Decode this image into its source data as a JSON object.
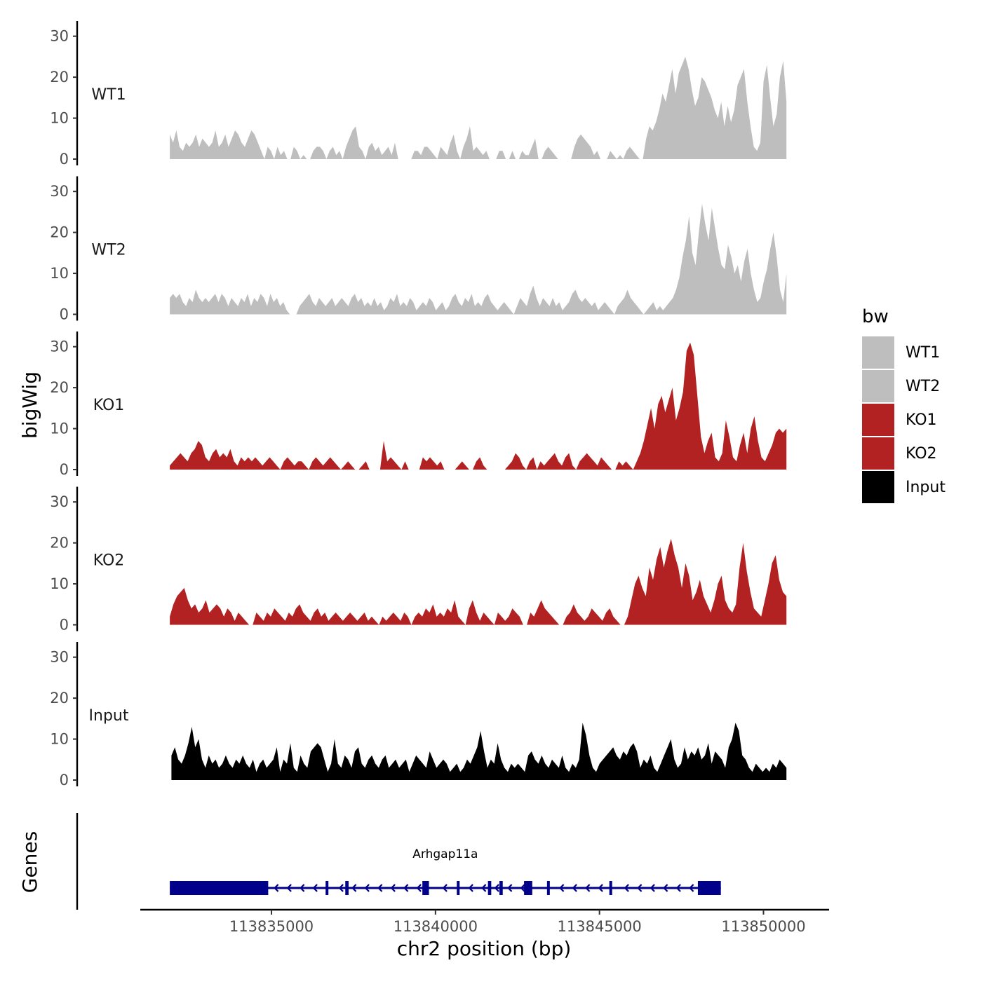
{
  "chart_data": {
    "type": "area",
    "ylabel": "bigWig",
    "xlabel": "chr2 position (bp)",
    "genes_label": "Genes",
    "xlim": [
      113831000,
      113852000
    ],
    "x_ticks": [
      113835000,
      113840000,
      113845000,
      113850000
    ],
    "x_tick_labels": [
      "113835000",
      "113840000",
      "113845000",
      "113850000"
    ],
    "ylim": [
      0,
      32
    ],
    "y_ticks": [
      0,
      10,
      20,
      30
    ],
    "y_tick_labels": [
      "0",
      "10",
      "20",
      "30"
    ],
    "track_range": [
      113831900,
      113850700
    ],
    "legend": {
      "title": "bw",
      "entries": [
        {
          "label": "WT1",
          "color": "#bebebe"
        },
        {
          "label": "WT2",
          "color": "#bebebe"
        },
        {
          "label": "KO1",
          "color": "#b22222"
        },
        {
          "label": "KO2",
          "color": "#b22222"
        },
        {
          "label": "Input",
          "color": "#000000"
        }
      ]
    },
    "series": [
      {
        "name": "WT1",
        "color": "#bebebe",
        "x_start": 113831900,
        "x_end": 113850700,
        "values": [
          6,
          4,
          7,
          3,
          2,
          4,
          3,
          4,
          6,
          3,
          5,
          4,
          3,
          4,
          7,
          3,
          4,
          6,
          3,
          5,
          7,
          6,
          4,
          3,
          5,
          7,
          6,
          4,
          2,
          0,
          3,
          2,
          0,
          3,
          1,
          2,
          0,
          0,
          3,
          2,
          0,
          1,
          0,
          0,
          2,
          3,
          3,
          2,
          0,
          2,
          3,
          1,
          2,
          0,
          3,
          5,
          7,
          8,
          3,
          2,
          0,
          3,
          4,
          2,
          3,
          1,
          2,
          3,
          1,
          4,
          0,
          0,
          0,
          0,
          0,
          2,
          2,
          1,
          3,
          3,
          2,
          1,
          0,
          3,
          2,
          1,
          4,
          6,
          2,
          0,
          3,
          5,
          8,
          2,
          3,
          2,
          1,
          2,
          0,
          0,
          0,
          2,
          2,
          0,
          0,
          2,
          0,
          0,
          2,
          1,
          1,
          3,
          5,
          0,
          0,
          2,
          3,
          2,
          1,
          0,
          0,
          0,
          0,
          0,
          3,
          5,
          6,
          5,
          4,
          3,
          1,
          2,
          0,
          0,
          0,
          2,
          1,
          0,
          1,
          0,
          2,
          3,
          2,
          1,
          0,
          0,
          5,
          8,
          7,
          9,
          12,
          16,
          14,
          18,
          22,
          16,
          21,
          23,
          25,
          22,
          17,
          13,
          15,
          20,
          19,
          17,
          15,
          12,
          10,
          14,
          8,
          13,
          9,
          12,
          18,
          20,
          22,
          14,
          8,
          3,
          2,
          4,
          19,
          23,
          15,
          8,
          11,
          20,
          24,
          14
        ]
      },
      {
        "name": "WT2",
        "color": "#bebebe",
        "x_start": 113831900,
        "x_end": 113850700,
        "values": [
          4,
          5,
          4,
          5,
          3,
          2,
          4,
          3,
          6,
          4,
          3,
          4,
          3,
          4,
          5,
          3,
          5,
          4,
          2,
          4,
          3,
          2,
          4,
          3,
          5,
          2,
          4,
          3,
          5,
          4,
          2,
          5,
          3,
          4,
          2,
          3,
          1,
          0,
          0,
          0,
          2,
          3,
          4,
          5,
          3,
          2,
          4,
          3,
          2,
          3,
          4,
          2,
          3,
          4,
          3,
          2,
          4,
          5,
          3,
          4,
          2,
          3,
          2,
          4,
          2,
          3,
          1,
          2,
          4,
          3,
          5,
          2,
          3,
          2,
          4,
          3,
          1,
          2,
          3,
          2,
          4,
          3,
          1,
          2,
          3,
          1,
          2,
          4,
          5,
          3,
          2,
          4,
          3,
          5,
          2,
          3,
          2,
          4,
          5,
          3,
          2,
          1,
          2,
          3,
          2,
          1,
          0,
          2,
          4,
          3,
          2,
          5,
          7,
          4,
          2,
          4,
          3,
          2,
          4,
          2,
          3,
          1,
          2,
          3,
          5,
          6,
          4,
          3,
          4,
          3,
          2,
          3,
          1,
          2,
          3,
          2,
          1,
          0,
          2,
          3,
          4,
          6,
          4,
          3,
          2,
          1,
          0,
          1,
          2,
          3,
          1,
          2,
          1,
          2,
          3,
          4,
          6,
          9,
          14,
          18,
          24,
          15,
          12,
          20,
          27,
          22,
          18,
          26,
          21,
          16,
          12,
          11,
          17,
          14,
          10,
          12,
          8,
          13,
          16,
          10,
          6,
          3,
          4,
          8,
          11,
          16,
          20,
          14,
          6,
          3,
          10
        ]
      },
      {
        "name": "KO1",
        "color": "#b22222",
        "x_start": 113831900,
        "x_end": 113850700,
        "values": [
          1,
          2,
          3,
          4,
          3,
          2,
          4,
          5,
          7,
          6,
          3,
          2,
          4,
          5,
          3,
          4,
          3,
          5,
          2,
          1,
          3,
          2,
          3,
          2,
          3,
          2,
          1,
          2,
          3,
          2,
          1,
          0,
          2,
          3,
          2,
          1,
          2,
          2,
          1,
          0,
          2,
          3,
          2,
          1,
          2,
          3,
          2,
          1,
          0,
          1,
          2,
          1,
          0,
          0,
          1,
          2,
          0,
          0,
          0,
          0,
          7,
          2,
          3,
          2,
          1,
          0,
          2,
          0,
          0,
          0,
          0,
          3,
          2,
          3,
          2,
          1,
          2,
          0,
          0,
          0,
          0,
          1,
          2,
          1,
          0,
          0,
          2,
          3,
          1,
          0,
          0,
          0,
          0,
          0,
          0,
          1,
          2,
          4,
          3,
          1,
          0,
          2,
          3,
          0,
          2,
          1,
          2,
          3,
          4,
          2,
          1,
          3,
          4,
          1,
          0,
          2,
          3,
          4,
          3,
          2,
          1,
          3,
          2,
          1,
          0,
          0,
          2,
          1,
          2,
          1,
          0,
          2,
          4,
          7,
          11,
          15,
          10,
          16,
          18,
          14,
          17,
          20,
          12,
          15,
          19,
          29,
          31,
          28,
          18,
          8,
          4,
          7,
          9,
          3,
          2,
          4,
          12,
          8,
          3,
          2,
          6,
          9,
          4,
          10,
          13,
          7,
          3,
          2,
          4,
          6,
          9,
          10,
          9,
          10
        ]
      },
      {
        "name": "KO2",
        "color": "#b22222",
        "x_start": 113831900,
        "x_end": 113850700,
        "values": [
          2,
          5,
          7,
          8,
          9,
          6,
          4,
          5,
          3,
          4,
          6,
          3,
          4,
          5,
          4,
          2,
          4,
          3,
          1,
          3,
          2,
          1,
          0,
          0,
          3,
          2,
          1,
          3,
          2,
          4,
          3,
          2,
          1,
          3,
          2,
          4,
          5,
          3,
          2,
          1,
          3,
          4,
          2,
          3,
          1,
          2,
          3,
          2,
          1,
          2,
          3,
          2,
          1,
          2,
          3,
          1,
          2,
          1,
          0,
          2,
          1,
          2,
          3,
          2,
          1,
          3,
          2,
          0,
          2,
          3,
          2,
          4,
          3,
          5,
          2,
          3,
          2,
          4,
          3,
          6,
          2,
          1,
          0,
          4,
          6,
          3,
          1,
          3,
          2,
          1,
          0,
          3,
          2,
          1,
          2,
          4,
          3,
          2,
          0,
          0,
          3,
          2,
          4,
          6,
          4,
          3,
          2,
          1,
          0,
          0,
          2,
          3,
          5,
          3,
          2,
          1,
          2,
          4,
          3,
          2,
          1,
          3,
          4,
          2,
          1,
          0,
          0,
          2,
          6,
          10,
          12,
          9,
          7,
          14,
          11,
          16,
          19,
          14,
          18,
          21,
          17,
          14,
          9,
          15,
          12,
          6,
          8,
          11,
          7,
          5,
          3,
          6,
          10,
          12,
          6,
          4,
          3,
          5,
          14,
          20,
          13,
          8,
          4,
          3,
          2,
          6,
          10,
          15,
          17,
          11,
          8,
          7
        ]
      },
      {
        "name": "Input",
        "color": "#000000",
        "x_start": 113831950,
        "x_end": 113850700,
        "values": [
          6,
          8,
          5,
          4,
          6,
          9,
          13,
          8,
          10,
          5,
          3,
          6,
          4,
          5,
          3,
          4,
          6,
          4,
          3,
          5,
          4,
          6,
          4,
          3,
          5,
          2,
          4,
          5,
          3,
          4,
          5,
          8,
          2,
          5,
          4,
          9,
          3,
          2,
          6,
          4,
          3,
          7,
          8,
          9,
          8,
          5,
          2,
          4,
          10,
          4,
          3,
          6,
          5,
          3,
          7,
          8,
          4,
          3,
          5,
          6,
          4,
          3,
          5,
          6,
          3,
          4,
          5,
          3,
          4,
          5,
          2,
          4,
          6,
          5,
          4,
          3,
          7,
          5,
          3,
          4,
          5,
          4,
          2,
          3,
          4,
          2,
          3,
          5,
          4,
          6,
          8,
          12,
          7,
          3,
          5,
          4,
          9,
          5,
          3,
          2,
          4,
          3,
          4,
          3,
          2,
          6,
          7,
          5,
          4,
          6,
          4,
          3,
          5,
          4,
          3,
          6,
          3,
          2,
          4,
          3,
          5,
          14,
          11,
          6,
          3,
          2,
          4,
          5,
          6,
          7,
          8,
          6,
          5,
          7,
          6,
          8,
          9,
          7,
          3,
          5,
          4,
          6,
          3,
          2,
          4,
          6,
          8,
          10,
          5,
          3,
          4,
          8,
          5,
          7,
          6,
          8,
          5,
          6,
          9,
          4,
          7,
          6,
          5,
          3,
          8,
          10,
          14,
          12,
          6,
          5,
          3,
          2,
          4,
          3,
          2,
          3,
          2,
          4,
          3,
          5,
          4,
          3
        ]
      }
    ],
    "genes": [
      {
        "name": "Arhgap11a",
        "strand": "-",
        "color": "#00008b",
        "start": 113831900,
        "end": 113848700,
        "exons": [
          [
            113831900,
            113834900
          ],
          [
            113836650,
            113836700
          ],
          [
            113837250,
            113837350
          ],
          [
            113839600,
            113839800
          ],
          [
            113840650,
            113840700
          ],
          [
            113841600,
            113841700
          ],
          [
            113841950,
            113842050
          ],
          [
            113842700,
            113842950
          ],
          [
            113843400,
            113843450
          ],
          [
            113845300,
            113845350
          ],
          [
            113848000,
            113848700
          ]
        ]
      }
    ]
  }
}
